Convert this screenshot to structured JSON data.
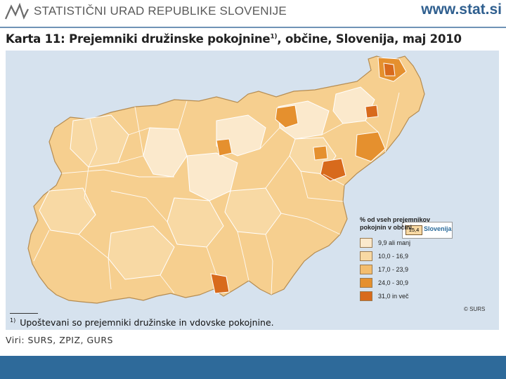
{
  "header": {
    "org_name": "STATISTIČNI URAD REPUBLIKE SLOVENIJE",
    "site_url": "www.stat.si"
  },
  "map_title": {
    "label": "Karta 11:",
    "text": "Prejemniki družinske pokojnine",
    "footnote_mark": "1)",
    "rest": ", občine, Slovenija, maj 2010"
  },
  "legend": {
    "title": "% od vseh prejemnikov pokojnin v občini",
    "classes": [
      {
        "label": "9,9 ali manj",
        "color": "#fbe9cc"
      },
      {
        "label": "10,0 - 16,9",
        "color": "#f8d9a4"
      },
      {
        "label": "17,0 - 23,9",
        "color": "#f3bd6e"
      },
      {
        "label": "24,0 - 30,9",
        "color": "#e5902e"
      },
      {
        "label": "31,0 in več",
        "color": "#d86a1c"
      }
    ]
  },
  "national": {
    "value": "15,4",
    "name": "Slovenija"
  },
  "copyright": "© SURS",
  "footnote": {
    "mark": "1)",
    "text": "Upoštevani so prejemniki družinske in vdovske pokojnine."
  },
  "source": "Viri: SURS, ZPIZ, GURS",
  "colors": {
    "panel_bg": "#d6e2ee",
    "footer_bar": "#2e6a9a",
    "boundary": "#ffffff"
  }
}
